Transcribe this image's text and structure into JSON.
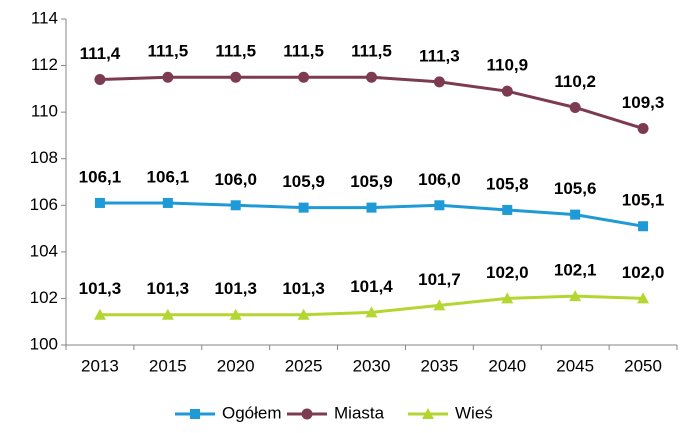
{
  "chart_data": {
    "type": "line",
    "categories": [
      "2013",
      "2015",
      "2020",
      "2025",
      "2030",
      "2035",
      "2040",
      "2045",
      "2050"
    ],
    "series": [
      {
        "name": "Ogółem",
        "color": "#1f9ad6",
        "marker": "square",
        "values": [
          106.1,
          106.1,
          106.0,
          105.9,
          105.9,
          106.0,
          105.8,
          105.6,
          105.1
        ],
        "value_labels": [
          "106,1",
          "106,1",
          "106,0",
          "105,9",
          "105,9",
          "106,0",
          "105,8",
          "105,6",
          "105,1"
        ]
      },
      {
        "name": "Miasta",
        "color": "#7c3b50",
        "marker": "circle",
        "values": [
          111.4,
          111.5,
          111.5,
          111.5,
          111.5,
          111.3,
          110.9,
          110.2,
          109.3
        ],
        "value_labels": [
          "111,4",
          "111,5",
          "111,5",
          "111,5",
          "111,5",
          "111,3",
          "110,9",
          "110,2",
          "109,3"
        ]
      },
      {
        "name": "Wieś",
        "color": "#b4d632",
        "marker": "triangle",
        "values": [
          101.3,
          101.3,
          101.3,
          101.3,
          101.4,
          101.7,
          102.0,
          102.1,
          102.0
        ],
        "value_labels": [
          "101,3",
          "101,3",
          "101,3",
          "101,3",
          "101,4",
          "101,7",
          "102,0",
          "102,1",
          "102,0"
        ]
      }
    ],
    "ylim": [
      100,
      114
    ],
    "yticks": [
      100,
      102,
      104,
      106,
      108,
      110,
      112,
      114
    ],
    "grid": false,
    "legend": "bottom"
  }
}
